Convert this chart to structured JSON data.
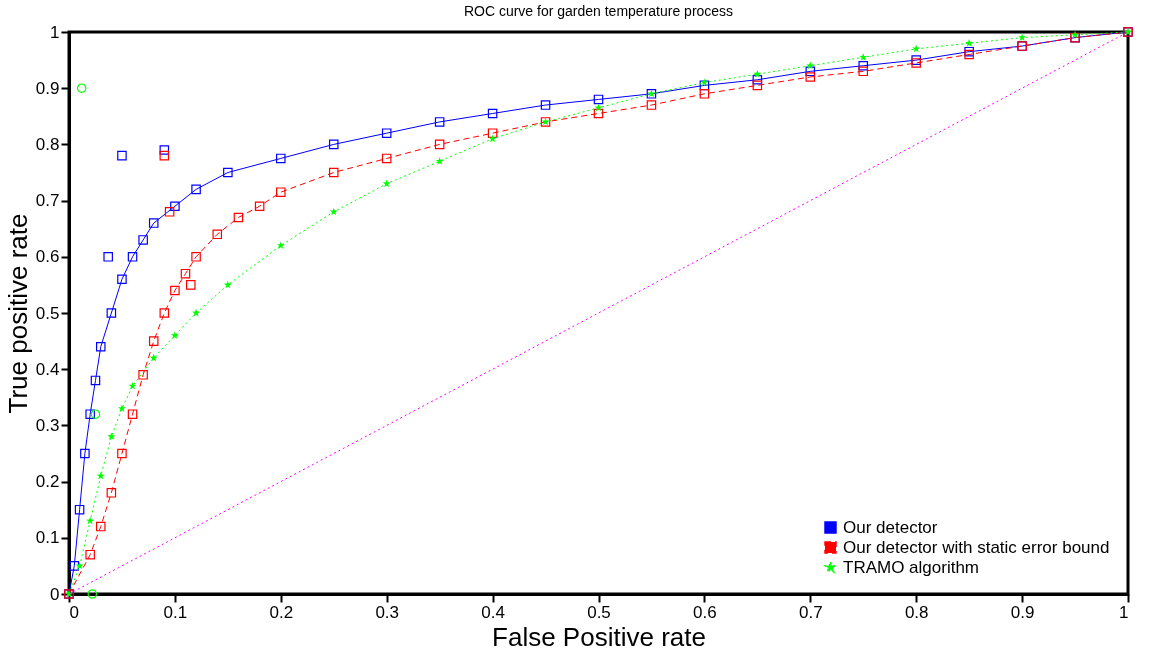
{
  "chart_data": {
    "type": "line",
    "title": "ROC curve for garden temperature process",
    "xlabel": "False Positive rate",
    "ylabel": "True positive rate",
    "xlim": [
      0,
      1
    ],
    "ylim": [
      0,
      1
    ],
    "xticks": [
      0,
      0.1,
      0.2,
      0.3,
      0.4,
      0.5,
      0.6,
      0.7,
      0.8,
      0.9,
      1
    ],
    "yticks": [
      0,
      0.1,
      0.2,
      0.3,
      0.4,
      0.5,
      0.6,
      0.7,
      0.8,
      0.9,
      1
    ],
    "grid": false,
    "legend": "bottom right",
    "series": [
      {
        "name": "Our detector",
        "color": "#0000ff",
        "marker": "square",
        "line_style": "solid",
        "x": [
          0,
          0.005,
          0.01,
          0.015,
          0.02,
          0.025,
          0.03,
          0.04,
          0.05,
          0.06,
          0.07,
          0.08,
          0.1,
          0.12,
          0.15,
          0.2,
          0.25,
          0.3,
          0.35,
          0.4,
          0.45,
          0.5,
          0.55,
          0.6,
          0.65,
          0.7,
          0.75,
          0.8,
          0.85,
          0.9,
          0.95,
          1
        ],
        "values": [
          0,
          0.05,
          0.15,
          0.25,
          0.32,
          0.38,
          0.44,
          0.5,
          0.56,
          0.6,
          0.63,
          0.66,
          0.69,
          0.72,
          0.75,
          0.775,
          0.8,
          0.82,
          0.84,
          0.855,
          0.87,
          0.88,
          0.89,
          0.905,
          0.915,
          0.93,
          0.94,
          0.95,
          0.965,
          0.975,
          0.99,
          1
        ]
      },
      {
        "name": "Our detector with static error bound",
        "color": "#ff0000",
        "marker": "square",
        "line_style": "dashed",
        "x": [
          0,
          0.02,
          0.03,
          0.04,
          0.05,
          0.06,
          0.07,
          0.08,
          0.09,
          0.1,
          0.11,
          0.12,
          0.14,
          0.16,
          0.18,
          0.2,
          0.25,
          0.3,
          0.35,
          0.4,
          0.45,
          0.5,
          0.55,
          0.6,
          0.65,
          0.7,
          0.75,
          0.8,
          0.85,
          0.9,
          0.95,
          1
        ],
        "values": [
          0,
          0.07,
          0.12,
          0.18,
          0.25,
          0.32,
          0.39,
          0.45,
          0.5,
          0.54,
          0.57,
          0.6,
          0.64,
          0.67,
          0.69,
          0.715,
          0.75,
          0.775,
          0.8,
          0.82,
          0.84,
          0.855,
          0.87,
          0.89,
          0.905,
          0.92,
          0.93,
          0.945,
          0.96,
          0.975,
          0.99,
          1
        ]
      },
      {
        "name": "TRAMO algorithm",
        "color": "#00ff00",
        "marker": "star",
        "line_style": "dotted",
        "x": [
          0,
          0.01,
          0.02,
          0.03,
          0.04,
          0.05,
          0.06,
          0.08,
          0.1,
          0.12,
          0.15,
          0.2,
          0.25,
          0.3,
          0.35,
          0.4,
          0.45,
          0.5,
          0.55,
          0.6,
          0.65,
          0.7,
          0.75,
          0.8,
          0.85,
          0.9,
          0.95,
          1
        ],
        "values": [
          0,
          0.05,
          0.13,
          0.21,
          0.28,
          0.33,
          0.37,
          0.42,
          0.46,
          0.5,
          0.55,
          0.62,
          0.68,
          0.73,
          0.77,
          0.81,
          0.84,
          0.865,
          0.89,
          0.91,
          0.925,
          0.94,
          0.955,
          0.97,
          0.98,
          0.99,
          0.995,
          1
        ]
      },
      {
        "color": "#ff00ff",
        "marker": "none",
        "line_style": "dotted",
        "x": [
          0,
          1
        ],
        "values": [
          0,
          1
        ]
      },
      {
        "type": "scatter",
        "color": "#0000ff",
        "marker": "square",
        "x": [
          0.037,
          0.05,
          0.09
        ],
        "values": [
          0.6,
          0.78,
          0.79
        ]
      },
      {
        "type": "scatter",
        "color": "#ff0000",
        "marker": "square",
        "x": [
          0.09,
          0.095,
          0.115
        ],
        "values": [
          0.78,
          0.68,
          0.55
        ]
      },
      {
        "type": "scatter",
        "color": "#00ff00",
        "marker": "circle",
        "x": [
          0.012,
          0.025,
          0.022
        ],
        "values": [
          0.9,
          0.32,
          0
        ]
      }
    ]
  }
}
